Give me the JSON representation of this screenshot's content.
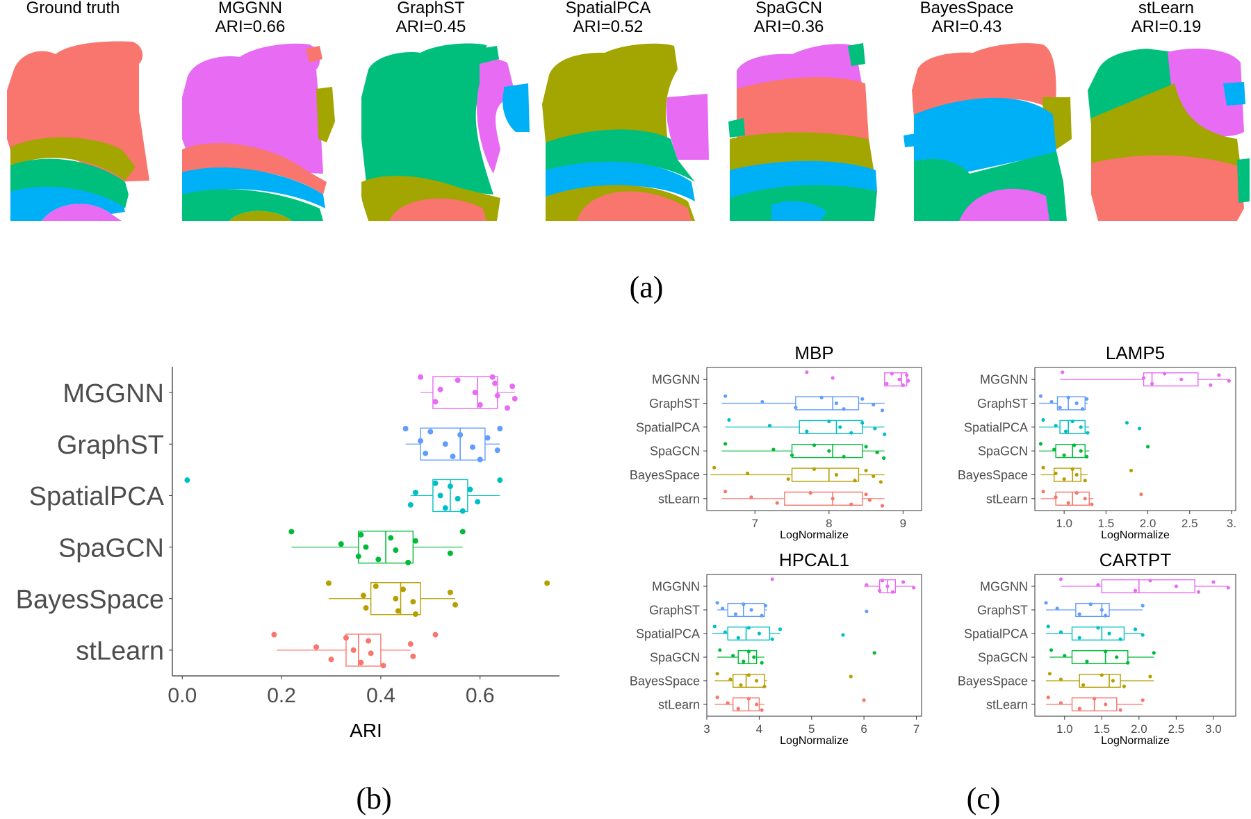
{
  "panel_labels": {
    "a": "(a)",
    "b": "(b)",
    "c": "(c)"
  },
  "spatial_maps": [
    {
      "title": "Ground truth",
      "ari": ""
    },
    {
      "title": "MGGNN",
      "ari": "ARI=0.66"
    },
    {
      "title": "GraphST",
      "ari": "ARI=0.45"
    },
    {
      "title": "SpatialPCA",
      "ari": "ARI=0.52"
    },
    {
      "title": "SpaGCN",
      "ari": "ARI=0.36"
    },
    {
      "title": "BayesSpace",
      "ari": "ARI=0.43"
    },
    {
      "title": "stLearn",
      "ari": "ARI=0.19"
    }
  ],
  "domain_colors": {
    "red": "#F8766D",
    "olive": "#A3A500",
    "green": "#00BF7D",
    "blue": "#00B0F6",
    "magenta": "#E76BF3"
  },
  "chart_data": [
    {
      "id": "ari-boxplot",
      "type": "boxplot",
      "title": "",
      "xlabel": "ARI",
      "ylabel": "",
      "xlim": [
        -0.02,
        0.76
      ],
      "xticks": [
        0.0,
        0.2,
        0.4,
        0.6
      ],
      "xtick_labels": [
        "0.0",
        "0.2",
        "0.4",
        "0.6"
      ],
      "categories": [
        "MGGNN",
        "GraphST",
        "SpatialPCA",
        "SpaGCN",
        "BayesSpace",
        "stLearn"
      ],
      "colors": [
        "#E76BF3",
        "#619CFF",
        "#00BFC4",
        "#00BA38",
        "#B79F00",
        "#F8766D"
      ],
      "series": [
        {
          "name": "MGGNN",
          "min": 0.48,
          "q1": 0.505,
          "median": 0.595,
          "q3": 0.635,
          "max": 0.67,
          "points": [
            0.48,
            0.52,
            0.51,
            0.555,
            0.59,
            0.6,
            0.63,
            0.635,
            0.655,
            0.665,
            0.67,
            0.625
          ]
        },
        {
          "name": "GraphST",
          "min": 0.45,
          "q1": 0.48,
          "median": 0.56,
          "q3": 0.61,
          "max": 0.64,
          "points": [
            0.45,
            0.48,
            0.49,
            0.5,
            0.53,
            0.545,
            0.56,
            0.585,
            0.6,
            0.615,
            0.635,
            0.64
          ]
        },
        {
          "name": "SpatialPCA",
          "min": 0.46,
          "q1": 0.505,
          "median": 0.54,
          "q3": 0.575,
          "max": 0.64,
          "points": [
            0.01,
            0.47,
            0.46,
            0.51,
            0.52,
            0.53,
            0.54,
            0.555,
            0.565,
            0.58,
            0.595,
            0.64
          ]
        },
        {
          "name": "SpaGCN",
          "min": 0.22,
          "q1": 0.355,
          "median": 0.41,
          "q3": 0.465,
          "max": 0.565,
          "points": [
            0.22,
            0.32,
            0.355,
            0.36,
            0.37,
            0.395,
            0.42,
            0.43,
            0.455,
            0.47,
            0.54,
            0.565
          ]
        },
        {
          "name": "BayesSpace",
          "min": 0.295,
          "q1": 0.38,
          "median": 0.44,
          "q3": 0.48,
          "max": 0.55,
          "points": [
            0.295,
            0.365,
            0.37,
            0.39,
            0.43,
            0.435,
            0.445,
            0.465,
            0.47,
            0.54,
            0.55,
            0.735
          ]
        },
        {
          "name": "stLearn",
          "min": 0.19,
          "q1": 0.33,
          "median": 0.355,
          "q3": 0.4,
          "max": 0.46,
          "points": [
            0.185,
            0.27,
            0.3,
            0.33,
            0.345,
            0.36,
            0.375,
            0.38,
            0.405,
            0.46,
            0.465,
            0.51
          ]
        }
      ]
    },
    {
      "id": "mbp-boxplot",
      "type": "boxplot",
      "title": "MBP",
      "xlabel": "LogNormalize",
      "ylabel": "",
      "xlim": [
        6.35,
        9.25
      ],
      "xticks": [
        7,
        8,
        9
      ],
      "xtick_labels": [
        "7",
        "8",
        "9"
      ],
      "categories": [
        "MGGNN",
        "GraphST",
        "SpatialPCA",
        "SpaGCN",
        "BayesSpace",
        "stLearn"
      ],
      "colors": [
        "#E76BF3",
        "#619CFF",
        "#00BFC4",
        "#00BA38",
        "#B79F00",
        "#F8766D"
      ],
      "series": [
        {
          "name": "MGGNN",
          "min": 8.75,
          "q1": 8.75,
          "median": 8.98,
          "q3": 9.05,
          "max": 9.08,
          "points": [
            7.7,
            8.05,
            8.78,
            8.85,
            8.95,
            9.0,
            9.05,
            9.07
          ]
        },
        {
          "name": "GraphST",
          "min": 6.55,
          "q1": 7.55,
          "median": 8.05,
          "q3": 8.4,
          "max": 8.75,
          "points": [
            6.6,
            7.1,
            7.55,
            7.9,
            8.1,
            8.2,
            8.45,
            8.6,
            8.72
          ]
        },
        {
          "name": "SpatialPCA",
          "min": 6.6,
          "q1": 7.6,
          "median": 8.1,
          "q3": 8.45,
          "max": 8.75,
          "points": [
            6.65,
            7.2,
            7.7,
            8.0,
            8.15,
            8.3,
            8.45,
            8.62,
            8.75
          ]
        },
        {
          "name": "SpaGCN",
          "min": 6.55,
          "q1": 7.5,
          "median": 8.05,
          "q3": 8.45,
          "max": 8.75,
          "points": [
            6.6,
            7.25,
            7.5,
            7.8,
            8.0,
            8.2,
            8.5,
            8.65,
            8.74
          ]
        },
        {
          "name": "BayesSpace",
          "min": 6.4,
          "q1": 7.5,
          "median": 8.0,
          "q3": 8.4,
          "max": 8.75,
          "points": [
            6.45,
            6.9,
            7.45,
            7.8,
            8.1,
            8.35,
            8.5,
            8.6,
            8.7
          ]
        },
        {
          "name": "stLearn",
          "min": 6.55,
          "q1": 7.4,
          "median": 8.05,
          "q3": 8.45,
          "max": 8.75,
          "points": [
            6.6,
            6.95,
            7.3,
            7.75,
            8.05,
            8.3,
            8.5,
            8.55,
            8.72
          ]
        }
      ]
    },
    {
      "id": "lamp5-boxplot",
      "type": "boxplot",
      "title": "LAMP5",
      "xlabel": "LogNormalize",
      "ylabel": "",
      "xlim": [
        0.65,
        3.05
      ],
      "xticks": [
        1.0,
        1.5,
        2.0,
        2.5,
        3.0
      ],
      "xtick_labels": [
        "1.0",
        "1.5",
        "2.0",
        "2.5",
        "3."
      ],
      "categories": [
        "MGGNN",
        "GraphST",
        "SpatialPCA",
        "SpaGCN",
        "BayesSpace",
        "stLearn"
      ],
      "colors": [
        "#E76BF3",
        "#619CFF",
        "#00BFC4",
        "#00BA38",
        "#B79F00",
        "#F8766D"
      ],
      "series": [
        {
          "name": "MGGNN",
          "min": 0.95,
          "q1": 1.95,
          "median": 2.05,
          "q3": 2.6,
          "max": 2.98,
          "points": [
            0.98,
            1.95,
            2.05,
            2.2,
            2.4,
            2.75,
            2.85,
            2.97
          ]
        },
        {
          "name": "GraphST",
          "min": 0.7,
          "q1": 0.92,
          "median": 1.05,
          "q3": 1.25,
          "max": 1.28,
          "points": [
            0.72,
            0.85,
            0.95,
            1.05,
            1.15,
            1.22,
            1.27
          ]
        },
        {
          "name": "SpatialPCA",
          "min": 0.7,
          "q1": 0.95,
          "median": 1.05,
          "q3": 1.25,
          "max": 1.3,
          "points": [
            0.75,
            0.9,
            1.02,
            1.1,
            1.2,
            1.28,
            1.75,
            1.9
          ]
        },
        {
          "name": "SpaGCN",
          "min": 0.7,
          "q1": 0.9,
          "median": 1.1,
          "q3": 1.25,
          "max": 1.3,
          "points": [
            0.72,
            0.88,
            1.0,
            1.12,
            1.2,
            1.27,
            2.0
          ]
        },
        {
          "name": "BayesSpace",
          "min": 0.72,
          "q1": 0.88,
          "median": 1.1,
          "q3": 1.2,
          "max": 1.28,
          "points": [
            0.75,
            0.9,
            1.0,
            1.1,
            1.15,
            1.25,
            1.8
          ]
        },
        {
          "name": "stLearn",
          "min": 0.72,
          "q1": 0.9,
          "median": 1.1,
          "q3": 1.3,
          "max": 1.35,
          "points": [
            0.75,
            0.9,
            1.05,
            1.15,
            1.25,
            1.33,
            1.92
          ]
        }
      ]
    },
    {
      "id": "hpcal1-boxplot",
      "type": "boxplot",
      "title": "HPCAL1",
      "xlabel": "LogNormalize",
      "ylabel": "",
      "xlim": [
        3.0,
        7.1
      ],
      "xticks": [
        3,
        4,
        5,
        6,
        7
      ],
      "xtick_labels": [
        "3",
        "4",
        "5",
        "6",
        "7"
      ],
      "categories": [
        "MGGNN",
        "GraphST",
        "SpatialPCA",
        "SpaGCN",
        "BayesSpace",
        "stLearn"
      ],
      "colors": [
        "#E76BF3",
        "#619CFF",
        "#00BFC4",
        "#00BA38",
        "#B79F00",
        "#F8766D"
      ],
      "series": [
        {
          "name": "MGGNN",
          "min": 6.0,
          "q1": 6.3,
          "median": 6.45,
          "q3": 6.6,
          "max": 6.95,
          "points": [
            4.25,
            6.05,
            6.3,
            6.35,
            6.45,
            6.55,
            6.75,
            6.95
          ]
        },
        {
          "name": "GraphST",
          "min": 3.2,
          "q1": 3.4,
          "median": 3.7,
          "q3": 4.1,
          "max": 4.15,
          "points": [
            3.2,
            3.3,
            3.55,
            3.7,
            3.85,
            4.05,
            4.12,
            6.05
          ]
        },
        {
          "name": "SpatialPCA",
          "min": 3.1,
          "q1": 3.4,
          "median": 3.75,
          "q3": 4.2,
          "max": 4.4,
          "points": [
            3.15,
            3.35,
            3.6,
            3.8,
            4.0,
            4.25,
            4.4,
            5.6
          ]
        },
        {
          "name": "SpaGCN",
          "min": 3.2,
          "q1": 3.6,
          "median": 3.8,
          "q3": 3.95,
          "max": 4.1,
          "points": [
            3.25,
            3.5,
            3.7,
            3.8,
            3.9,
            4.05,
            6.2
          ]
        },
        {
          "name": "BayesSpace",
          "min": 3.15,
          "q1": 3.5,
          "median": 3.75,
          "q3": 4.1,
          "max": 4.15,
          "points": [
            3.2,
            3.45,
            3.65,
            3.8,
            3.95,
            4.1,
            5.75
          ]
        },
        {
          "name": "stLearn",
          "min": 3.15,
          "q1": 3.5,
          "median": 3.8,
          "q3": 4.0,
          "max": 4.1,
          "points": [
            3.2,
            3.4,
            3.6,
            3.8,
            3.95,
            4.05,
            6.0
          ]
        }
      ]
    },
    {
      "id": "cartpt-boxplot",
      "type": "boxplot",
      "title": "CARTPT",
      "xlabel": "LogNormalize",
      "ylabel": "",
      "xlim": [
        0.6,
        3.3
      ],
      "xticks": [
        1.0,
        1.5,
        2.0,
        2.5,
        3.0
      ],
      "xtick_labels": [
        "1.0",
        "1.5",
        "2.0",
        "2.5",
        "3.0"
      ],
      "categories": [
        "MGGNN",
        "GraphST",
        "SpatialPCA",
        "SpaGCN",
        "BayesSpace",
        "stLearn"
      ],
      "colors": [
        "#E76BF3",
        "#619CFF",
        "#00BFC4",
        "#00BA38",
        "#B79F00",
        "#F8766D"
      ],
      "series": [
        {
          "name": "MGGNN",
          "min": 0.95,
          "q1": 1.5,
          "median": 2.0,
          "q3": 2.75,
          "max": 3.2,
          "points": [
            0.95,
            1.45,
            1.95,
            2.15,
            2.5,
            2.8,
            3.0,
            3.2
          ]
        },
        {
          "name": "GraphST",
          "min": 0.75,
          "q1": 1.15,
          "median": 1.5,
          "q3": 1.6,
          "max": 2.05,
          "points": [
            0.75,
            0.9,
            1.2,
            1.35,
            1.5,
            1.55,
            2.05
          ]
        },
        {
          "name": "SpatialPCA",
          "min": 0.75,
          "q1": 1.1,
          "median": 1.5,
          "q3": 1.8,
          "max": 2.05,
          "points": [
            0.78,
            0.95,
            1.2,
            1.45,
            1.6,
            1.75,
            1.95,
            2.05
          ]
        },
        {
          "name": "SpaGCN",
          "min": 0.8,
          "q1": 1.1,
          "median": 1.55,
          "q3": 1.85,
          "max": 2.2,
          "points": [
            0.82,
            1.0,
            1.3,
            1.55,
            1.7,
            1.85,
            2.2
          ]
        },
        {
          "name": "BayesSpace",
          "min": 0.75,
          "q1": 1.2,
          "median": 1.6,
          "q3": 1.75,
          "max": 2.2,
          "points": [
            0.8,
            0.95,
            1.25,
            1.5,
            1.65,
            1.8,
            2.15
          ]
        },
        {
          "name": "stLearn",
          "min": 0.75,
          "q1": 1.1,
          "median": 1.4,
          "q3": 1.7,
          "max": 2.05,
          "points": [
            0.78,
            0.95,
            1.2,
            1.4,
            1.55,
            1.75,
            2.05
          ]
        }
      ]
    }
  ]
}
